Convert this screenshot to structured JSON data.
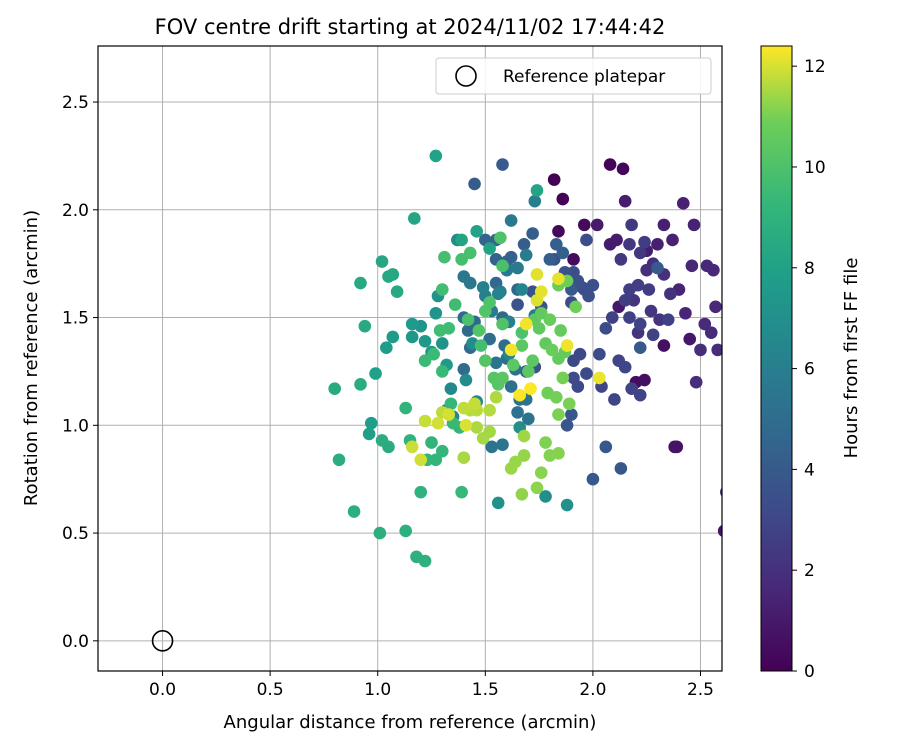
{
  "chart_data": {
    "type": "scatter",
    "title": "FOV centre drift starting at 2024/11/02 17:44:42",
    "xlabel": "Angular distance from reference (arcmin)",
    "ylabel": "Rotation from reference (arcmin)",
    "xlim": [
      -0.3,
      2.6
    ],
    "ylim": [
      -0.14,
      2.76
    ],
    "xticks": [
      0.0,
      0.5,
      1.0,
      1.5,
      2.0,
      2.5
    ],
    "xtick_labels": [
      "0.0",
      "0.5",
      "1.0",
      "1.5",
      "2.0",
      "2.5"
    ],
    "yticks": [
      0.0,
      0.5,
      1.0,
      1.5,
      2.0,
      2.5
    ],
    "ytick_labels": [
      "0.0",
      "0.5",
      "1.0",
      "1.5",
      "2.0",
      "2.5"
    ],
    "grid": true,
    "legend": {
      "position": "top-right",
      "entries": [
        {
          "label": "Reference platepar",
          "marker": "open-circle"
        }
      ]
    },
    "reference_point": {
      "x": 0.0,
      "y": 0.0
    },
    "colorbar": {
      "label": "Hours from first FF file",
      "colormap": "viridis",
      "range": [
        0,
        12.4
      ],
      "ticks": [
        0,
        2,
        4,
        6,
        8,
        10,
        12
      ],
      "tick_labels": [
        "0",
        "2",
        "4",
        "6",
        "8",
        "10",
        "12"
      ]
    },
    "series": [
      {
        "hours_range": [
          0,
          1
        ],
        "points": [
          [
            1.82,
            2.14
          ],
          [
            1.86,
            2.05
          ],
          [
            2.08,
            2.21
          ],
          [
            2.14,
            2.19
          ],
          [
            1.84,
            1.9
          ],
          [
            1.96,
            1.93
          ],
          [
            1.91,
            1.77
          ],
          [
            2.2,
            1.2
          ],
          [
            2.24,
            1.21
          ],
          [
            2.33,
            1.37
          ],
          [
            2.39,
            0.9
          ],
          [
            2.38,
            0.9
          ],
          [
            2.61,
            0.51
          ],
          [
            2.45,
            1.4
          ],
          [
            2.12,
            1.55
          ]
        ]
      },
      {
        "hours_range": [
          1,
          2.5
        ],
        "points": [
          [
            2.02,
            1.93
          ],
          [
            2.08,
            1.84
          ],
          [
            2.11,
            1.86
          ],
          [
            2.15,
            2.04
          ],
          [
            2.25,
            1.81
          ],
          [
            2.3,
            1.84
          ],
          [
            2.33,
            1.93
          ],
          [
            2.37,
            1.86
          ],
          [
            2.42,
            2.03
          ],
          [
            2.47,
            1.93
          ],
          [
            2.4,
            1.63
          ],
          [
            2.43,
            1.52
          ],
          [
            2.46,
            1.74
          ],
          [
            2.53,
            1.74
          ],
          [
            2.56,
            1.72
          ],
          [
            2.57,
            1.55
          ],
          [
            2.52,
            1.47
          ],
          [
            2.55,
            1.43
          ],
          [
            2.58,
            1.35
          ],
          [
            2.5,
            1.35
          ],
          [
            2.48,
            1.2
          ],
          [
            2.28,
            1.75
          ],
          [
            2.25,
            1.72
          ],
          [
            2.33,
            1.7
          ],
          [
            2.36,
            1.61
          ],
          [
            2.31,
            1.49
          ],
          [
            2.21,
            1.43
          ],
          [
            2.19,
            1.58
          ],
          [
            2.27,
            1.53
          ],
          [
            2.22,
            1.8
          ],
          [
            2.17,
            1.84
          ],
          [
            2.13,
            1.77
          ],
          [
            2.18,
            1.93
          ],
          [
            2.62,
            0.69
          ]
        ]
      },
      {
        "hours_range": [
          2.5,
          4
        ],
        "points": [
          [
            2.24,
            1.85
          ],
          [
            2.26,
            1.63
          ],
          [
            2.21,
            1.65
          ],
          [
            2.17,
            1.63
          ],
          [
            2.15,
            1.58
          ],
          [
            2.09,
            1.5
          ],
          [
            2.17,
            1.5
          ],
          [
            2.35,
            1.49
          ],
          [
            2.28,
            1.42
          ],
          [
            2.22,
            1.47
          ],
          [
            2.18,
            1.17
          ],
          [
            2.22,
            1.14
          ],
          [
            2.15,
            1.27
          ],
          [
            2.12,
            1.3
          ],
          [
            2.1,
            1.12
          ],
          [
            2.04,
            1.18
          ],
          [
            1.94,
            1.33
          ],
          [
            1.91,
            1.3
          ],
          [
            1.93,
            1.18
          ],
          [
            1.91,
            1.22
          ],
          [
            1.97,
            1.24
          ],
          [
            2.03,
            1.33
          ],
          [
            2.06,
            1.45
          ],
          [
            1.97,
            1.86
          ],
          [
            1.95,
            1.64
          ],
          [
            1.9,
            1.57
          ],
          [
            1.91,
            1.71
          ],
          [
            1.96,
            1.63
          ],
          [
            2.0,
            1.65
          ],
          [
            1.98,
            1.6
          ],
          [
            1.93,
            1.67
          ],
          [
            1.87,
            1.71
          ],
          [
            1.82,
            1.77
          ],
          [
            1.72,
            1.62
          ],
          [
            1.65,
            1.56
          ],
          [
            1.76,
            1.55
          ],
          [
            1.73,
            1.27
          ],
          [
            1.69,
            1.25
          ],
          [
            1.88,
            1.0
          ],
          [
            1.9,
            1.05
          ],
          [
            2.0,
            0.75
          ],
          [
            2.06,
            0.9
          ],
          [
            2.13,
            0.8
          ],
          [
            1.9,
            1.63
          ],
          [
            2.22,
            1.36
          ],
          [
            2.3,
            1.73
          ]
        ]
      },
      {
        "hours_range": [
          4,
          6
        ],
        "points": [
          [
            1.58,
            2.21
          ],
          [
            1.45,
            2.12
          ],
          [
            1.68,
            1.84
          ],
          [
            1.72,
            1.89
          ],
          [
            1.8,
            1.77
          ],
          [
            1.83,
            1.84
          ],
          [
            1.86,
            1.8
          ],
          [
            1.62,
            1.78
          ],
          [
            1.55,
            1.77
          ],
          [
            1.6,
            1.76
          ],
          [
            1.5,
            1.86
          ],
          [
            1.55,
            1.86
          ],
          [
            1.65,
            1.63
          ],
          [
            1.55,
            1.66
          ],
          [
            1.58,
            1.5
          ],
          [
            1.45,
            1.48
          ],
          [
            1.42,
            1.44
          ],
          [
            1.4,
            1.5
          ],
          [
            1.43,
            1.36
          ],
          [
            1.4,
            1.26
          ],
          [
            1.52,
            1.4
          ],
          [
            1.59,
            1.37
          ],
          [
            1.6,
            1.31
          ],
          [
            1.64,
            1.26
          ],
          [
            1.62,
            1.18
          ],
          [
            1.66,
            1.12
          ],
          [
            1.69,
            1.12
          ],
          [
            1.65,
            1.06
          ],
          [
            1.7,
            1.03
          ],
          [
            1.53,
            0.9
          ],
          [
            1.58,
            0.91
          ],
          [
            1.55,
            1.29
          ],
          [
            1.4,
            1.69
          ],
          [
            1.43,
            1.66
          ],
          [
            1.6,
            1.72
          ],
          [
            1.62,
            1.95
          ],
          [
            1.65,
            1.73
          ],
          [
            1.73,
            1.51
          ],
          [
            1.69,
            1.79
          ],
          [
            1.53,
            1.53
          ],
          [
            1.5,
            1.6
          ],
          [
            1.57,
            1.62
          ]
        ]
      },
      {
        "hours_range": [
          6,
          8
        ],
        "points": [
          [
            1.73,
            2.04
          ],
          [
            1.61,
            1.48
          ],
          [
            1.49,
            1.64
          ],
          [
            1.56,
            1.61
          ],
          [
            1.61,
            1.33
          ],
          [
            1.67,
            1.63
          ],
          [
            1.35,
            1.04
          ],
          [
            1.32,
            1.07
          ],
          [
            1.34,
            1.17
          ],
          [
            1.46,
            1.11
          ],
          [
            1.41,
            1.21
          ],
          [
            1.37,
            1.86
          ],
          [
            1.44,
            1.38
          ],
          [
            1.66,
            0.99
          ],
          [
            1.78,
            0.67
          ],
          [
            1.88,
            0.63
          ],
          [
            1.56,
            0.64
          ],
          [
            1.28,
            1.6
          ],
          [
            1.3,
            1.38
          ],
          [
            1.27,
            1.52
          ],
          [
            1.2,
            1.46
          ],
          [
            1.16,
            1.41
          ],
          [
            1.25,
            1.34
          ],
          [
            1.22,
            1.39
          ],
          [
            1.16,
            1.47
          ],
          [
            1.32,
            1.28
          ],
          [
            1.07,
            1.41
          ],
          [
            1.04,
            1.36
          ],
          [
            0.97,
            1.01
          ],
          [
            0.96,
            0.96
          ],
          [
            0.99,
            1.24
          ]
        ]
      },
      {
        "hours_range": [
          8,
          10
        ],
        "points": [
          [
            1.27,
            2.25
          ],
          [
            1.46,
            1.9
          ],
          [
            1.52,
            1.82
          ],
          [
            1.39,
            1.86
          ],
          [
            1.74,
            2.09
          ],
          [
            1.17,
            1.96
          ],
          [
            1.02,
            1.76
          ],
          [
            1.07,
            1.7
          ],
          [
            1.05,
            1.69
          ],
          [
            1.09,
            1.62
          ],
          [
            0.92,
            1.66
          ],
          [
            0.94,
            1.46
          ],
          [
            0.8,
            1.17
          ],
          [
            0.92,
            1.19
          ],
          [
            1.05,
            0.9
          ],
          [
            1.02,
            0.93
          ],
          [
            0.82,
            0.84
          ],
          [
            0.89,
            0.6
          ],
          [
            1.01,
            0.5
          ],
          [
            1.13,
            0.51
          ],
          [
            1.18,
            0.39
          ],
          [
            1.22,
            0.37
          ],
          [
            1.2,
            0.69
          ],
          [
            1.15,
            0.93
          ],
          [
            1.13,
            1.08
          ],
          [
            1.25,
            0.92
          ],
          [
            1.23,
            0.84
          ],
          [
            1.27,
            0.84
          ],
          [
            1.3,
            0.88
          ],
          [
            1.38,
            0.99
          ],
          [
            1.34,
            1.1
          ],
          [
            1.39,
            0.69
          ],
          [
            1.35,
            1.01
          ],
          [
            1.3,
            1.25
          ],
          [
            1.26,
            1.33
          ],
          [
            1.22,
            1.3
          ],
          [
            1.33,
            1.45
          ],
          [
            1.36,
            1.56
          ],
          [
            1.3,
            1.63
          ],
          [
            1.29,
            1.44
          ],
          [
            1.48,
            1.37
          ],
          [
            1.39,
            1.77
          ],
          [
            1.31,
            1.78
          ],
          [
            1.43,
            1.8
          ],
          [
            1.42,
            1.49
          ],
          [
            1.58,
            1.74
          ],
          [
            1.67,
            1.43
          ]
        ]
      },
      {
        "hours_range": [
          10,
          12.4
        ],
        "points": [
          [
            1.57,
            1.87
          ],
          [
            1.52,
            1.57
          ],
          [
            1.58,
            1.47
          ],
          [
            1.5,
            1.53
          ],
          [
            1.47,
            1.44
          ],
          [
            1.5,
            1.3
          ],
          [
            1.54,
            1.22
          ],
          [
            1.56,
            1.19
          ],
          [
            1.58,
            1.22
          ],
          [
            1.63,
            1.28
          ],
          [
            1.67,
            1.37
          ],
          [
            1.7,
            1.25
          ],
          [
            1.72,
            1.3
          ],
          [
            1.75,
            1.45
          ],
          [
            1.73,
            1.49
          ],
          [
            1.76,
            1.52
          ],
          [
            1.78,
            1.38
          ],
          [
            1.84,
            1.31
          ],
          [
            1.87,
            1.34
          ],
          [
            1.85,
            1.44
          ],
          [
            1.8,
            1.49
          ],
          [
            1.81,
            1.35
          ],
          [
            1.84,
            1.65
          ],
          [
            1.88,
            1.67
          ],
          [
            1.92,
            1.55
          ],
          [
            1.79,
            1.15
          ],
          [
            1.83,
            1.13
          ],
          [
            1.86,
            1.22
          ],
          [
            1.89,
            1.1
          ],
          [
            1.84,
            1.05
          ],
          [
            1.78,
            0.92
          ],
          [
            1.8,
            0.86
          ],
          [
            1.84,
            0.87
          ],
          [
            1.76,
            0.78
          ],
          [
            1.74,
            0.71
          ],
          [
            1.67,
            0.68
          ],
          [
            1.68,
            0.86
          ],
          [
            1.64,
            0.83
          ],
          [
            1.62,
            0.8
          ],
          [
            1.68,
            0.95
          ],
          [
            1.52,
            0.97
          ],
          [
            1.49,
            0.94
          ],
          [
            1.4,
            0.85
          ],
          [
            1.46,
            0.99
          ],
          [
            1.55,
            1.13
          ],
          [
            1.52,
            1.07
          ],
          [
            1.43,
            1.07
          ],
          [
            1.46,
            1.07
          ],
          [
            1.3,
            1.06
          ],
          [
            1.4,
            1.08
          ],
          [
            1.45,
            1.1
          ],
          [
            1.22,
            1.02
          ],
          [
            1.16,
            0.9
          ],
          [
            1.2,
            0.84
          ],
          [
            1.28,
            1.01
          ],
          [
            1.33,
            1.05
          ],
          [
            1.41,
            1.0
          ],
          [
            1.74,
            1.58
          ],
          [
            1.74,
            1.7
          ],
          [
            1.76,
            1.62
          ],
          [
            1.84,
            1.68
          ],
          [
            2.03,
            1.22
          ],
          [
            1.88,
            1.37
          ],
          [
            1.69,
            1.47
          ],
          [
            1.62,
            1.35
          ],
          [
            1.66,
            1.14
          ],
          [
            1.71,
            1.17
          ]
        ]
      }
    ]
  }
}
